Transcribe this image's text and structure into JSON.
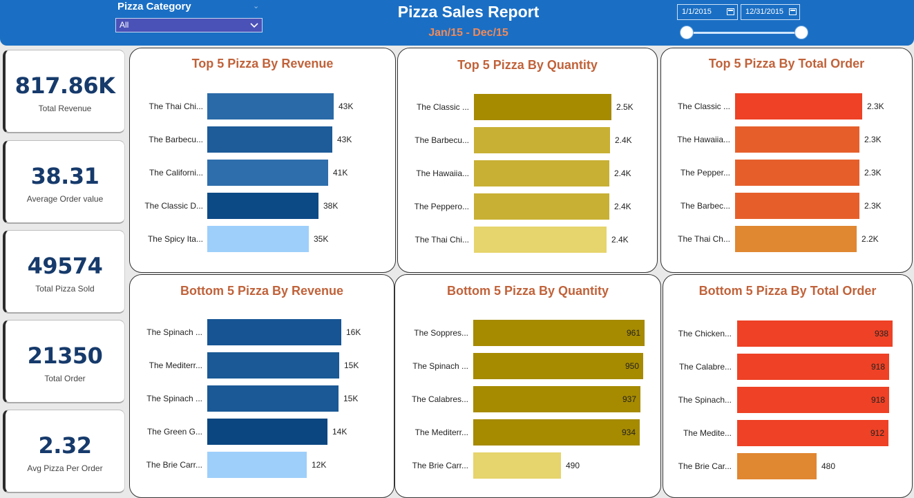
{
  "header": {
    "title": "Pizza Sales Report",
    "subtitle": "Jan/15 - Dec/15",
    "filter_label": "Pizza Category",
    "filter_value": "All",
    "start_date": "1/1/2015",
    "end_date": "12/31/2015",
    "header_color": "#1a6fc4",
    "date_range_fraction": [
      0,
      1
    ]
  },
  "kpis": [
    {
      "value": "817.86K",
      "label": "Total Revenue"
    },
    {
      "value": "38.31",
      "label": "Average Order value"
    },
    {
      "value": "49574",
      "label": "Total Pizza Sold"
    },
    {
      "value": "21350",
      "label": "Total Order"
    },
    {
      "value": "2.32",
      "label": "Avg Pizza Per Order"
    }
  ],
  "chart_data": [
    {
      "type": "bar",
      "orientation": "horizontal",
      "title": "Top 5 Pizza By Revenue",
      "categories": [
        "The Thai Chi...",
        "The Barbecu...",
        "The Californi...",
        "The Classic D...",
        "The Spicy Ita..."
      ],
      "values": [
        43434,
        42768,
        41410,
        38180,
        34831
      ],
      "value_labels": [
        "43K",
        "43K",
        "41K",
        "38K",
        "35K"
      ],
      "colors": [
        "#2a6aa8",
        "#1d5b99",
        "#2e6eac",
        "#0c4a86",
        "#9ecffb"
      ],
      "xlim": [
        0,
        45000
      ],
      "label_inside": false
    },
    {
      "type": "bar",
      "orientation": "horizontal",
      "title": "Top 5 Pizza By Quantity",
      "categories": [
        "The Classic ...",
        "The Barbecu...",
        "The Hawaiia...",
        "The Peppero...",
        "The Thai Chi..."
      ],
      "values": [
        2453,
        2432,
        2422,
        2418,
        2371
      ],
      "value_labels": [
        "2.5K",
        "2.4K",
        "2.4K",
        "2.4K",
        "2.4K"
      ],
      "colors": [
        "#a68a00",
        "#c8b034",
        "#c8b034",
        "#c8b034",
        "#e6d46c"
      ],
      "xlim": [
        0,
        2580
      ],
      "label_inside": false
    },
    {
      "type": "bar",
      "orientation": "horizontal",
      "title": "Top 5 Pizza By Total Order",
      "categories": [
        "The Classic ...",
        "The Hawaiia...",
        "The Pepper...",
        "The Barbec...",
        "The Thai Ch..."
      ],
      "values": [
        2329,
        2280,
        2278,
        2273,
        2225
      ],
      "value_labels": [
        "2.3K",
        "2.3K",
        "2.3K",
        "2.3K",
        "2.2K"
      ],
      "colors": [
        "#ee4125",
        "#e65f2b",
        "#e65f2b",
        "#e65f2b",
        "#e08732"
      ],
      "xlim": [
        0,
        2430
      ],
      "label_inside": false
    },
    {
      "type": "bar",
      "orientation": "horizontal",
      "title": "Bottom 5 Pizza By Revenue",
      "categories": [
        "The Spinach ...",
        "The Mediterr...",
        "The Spinach ...",
        "The Green G...",
        "The Brie Carr..."
      ],
      "values": [
        15596,
        15361,
        15278,
        13956,
        11588
      ],
      "value_labels": [
        "16K",
        "15K",
        "15K",
        "14K",
        "12K"
      ],
      "colors": [
        "#165494",
        "#1a5996",
        "#1a5996",
        "#0b4680",
        "#9ecffb"
      ],
      "xlim": [
        0,
        16300
      ],
      "label_inside": false
    },
    {
      "type": "bar",
      "orientation": "horizontal",
      "title": "Bottom 5 Pizza By Quantity",
      "categories": [
        "The Soppres...",
        "The Spinach ...",
        "The Calabres...",
        "The Mediterr...",
        "The Brie Carr..."
      ],
      "values": [
        961,
        950,
        937,
        934,
        490
      ],
      "value_labels": [
        "961",
        "950",
        "937",
        "934",
        "490"
      ],
      "colors": [
        "#a68a00",
        "#a68a00",
        "#a68a00",
        "#a68a00",
        "#e6d46c"
      ],
      "xlim": [
        0,
        975
      ],
      "label_inside": true
    },
    {
      "type": "bar",
      "orientation": "horizontal",
      "title": "Bottom 5 Pizza By Total Order",
      "categories": [
        "The Chicken...",
        "The Calabre...",
        "The Spinach...",
        "The Medite...",
        "The Brie Car..."
      ],
      "values": [
        938,
        918,
        918,
        912,
        480
      ],
      "value_labels": [
        "938",
        "918",
        "918",
        "912",
        "480"
      ],
      "colors": [
        "#ee4125",
        "#ee4125",
        "#ee4125",
        "#ee4125",
        "#e08732"
      ],
      "xlim": [
        0,
        955
      ],
      "label_inside": true
    }
  ]
}
